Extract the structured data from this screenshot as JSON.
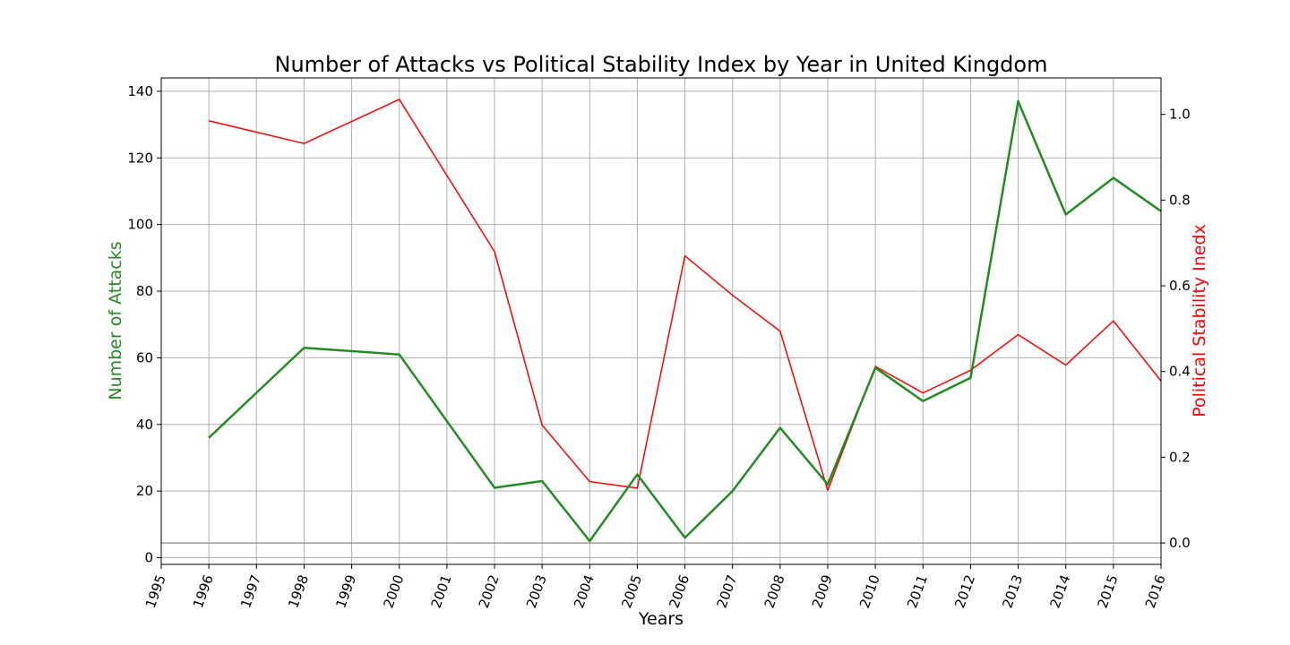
{
  "chart_data": {
    "type": "line",
    "title": "Number of Attacks vs Political Stability Index by Year in United Kingdom",
    "xlabel": "Years",
    "ylabel_left": "Number of Attacks",
    "ylabel_right": "Political Stability Inedx",
    "x_ticks": [
      "1995",
      "1996",
      "1997",
      "1998",
      "1999",
      "2000",
      "2001",
      "2002",
      "2003",
      "2004",
      "2005",
      "2006",
      "2007",
      "2008",
      "2009",
      "2010",
      "2011",
      "2012",
      "2013",
      "2014",
      "2015",
      "2016"
    ],
    "xlim": [
      1995,
      2016
    ],
    "y_left_ticks": [
      "0",
      "20",
      "40",
      "60",
      "80",
      "100",
      "120",
      "140"
    ],
    "y_left_lim": [
      -2,
      144
    ],
    "y_right_ticks": [
      "0.0",
      "0.2",
      "0.4",
      "0.6",
      "0.8",
      "1.0"
    ],
    "y_right_lim": [
      -0.05,
      1.085
    ],
    "grid": true,
    "colors": {
      "attacks": "#228B22",
      "stability": "#ff0000",
      "zero_line": "#999999"
    },
    "series": [
      {
        "axis": "left",
        "x": [
          1996,
          1998,
          2000,
          2002,
          2003,
          2004,
          2005,
          2006,
          2007,
          2008,
          2009,
          2010,
          2011,
          2012,
          2013,
          2014,
          2015,
          2016
        ],
        "values": [
          36,
          63,
          61,
          21,
          23,
          5,
          25,
          6,
          20,
          39,
          22,
          57,
          47,
          54,
          137,
          103,
          114,
          104
        ]
      },
      {
        "axis": "right",
        "x": [
          1996,
          1998,
          2000,
          2002,
          2003,
          2004,
          2005,
          2006,
          2007,
          2008,
          2009,
          2010,
          2011,
          2012,
          2013,
          2014,
          2015,
          2016
        ],
        "values": [
          0.985,
          0.932,
          1.035,
          0.68,
          0.275,
          0.143,
          0.128,
          0.67,
          0.578,
          0.494,
          0.123,
          0.412,
          0.35,
          0.403,
          0.486,
          0.415,
          0.518,
          0.378
        ]
      }
    ]
  }
}
